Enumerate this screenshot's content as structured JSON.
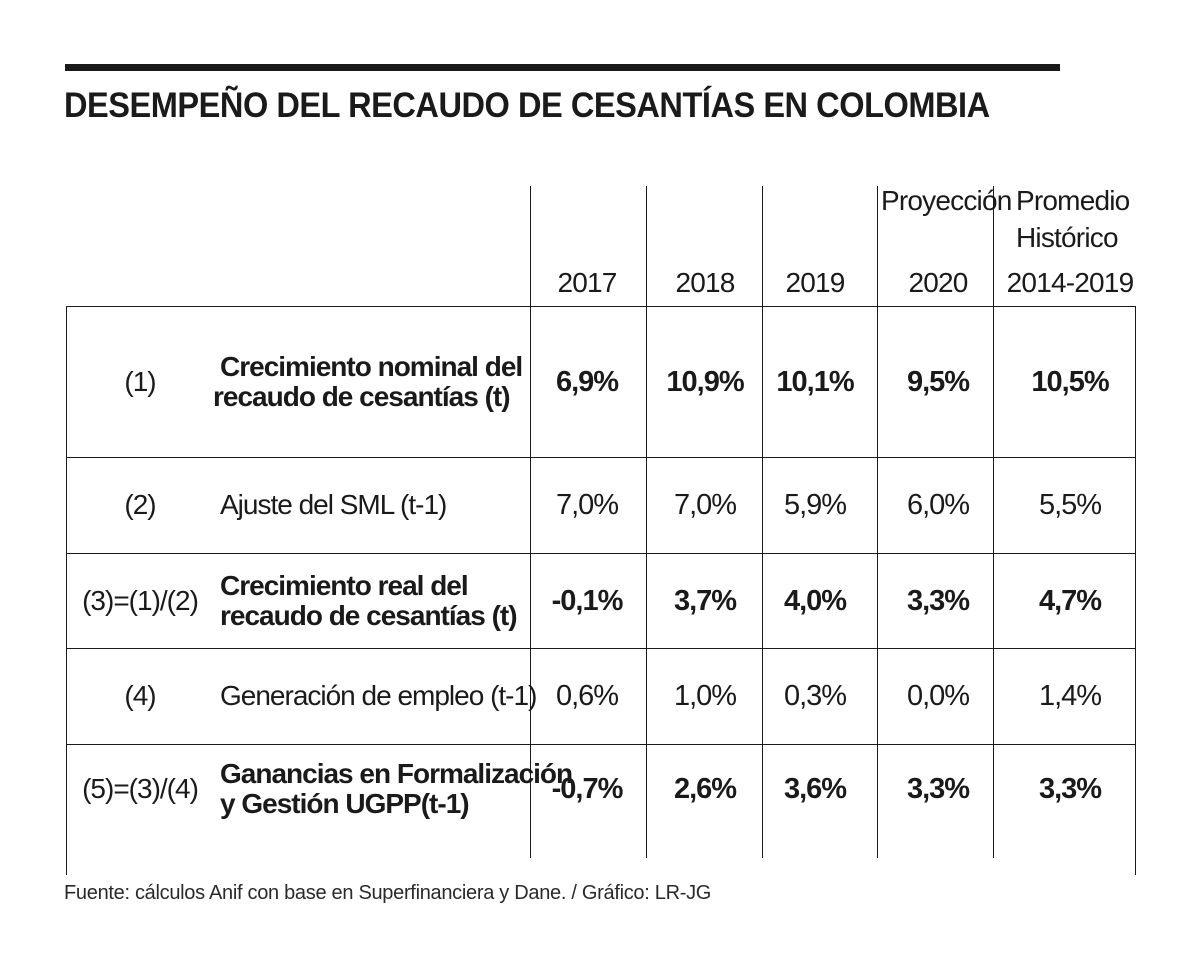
{
  "title": "DESEMPEÑO DEL RECAUDO DE CESANTÍAS EN COLOMBIA",
  "header": {
    "proyeccion": "Proyección",
    "promedio_line1": "Promedio",
    "promedio_line2": "Histórico",
    "columns": [
      "2017",
      "2018",
      "2019",
      "2020",
      "2014-2019"
    ]
  },
  "rows": [
    {
      "num": "(1)",
      "label_line1": "Crecimiento nominal del",
      "label_line2": "recaudo de cesantías (t)",
      "bold": true,
      "values": [
        "6,9%",
        "10,9%",
        "10,1%",
        "9,5%",
        "10,5%"
      ]
    },
    {
      "num": "(2)",
      "label_line1": "Ajuste del SML (t-1)",
      "label_line2": "",
      "bold": false,
      "values": [
        "7,0%",
        "7,0%",
        "5,9%",
        "6,0%",
        "5,5%"
      ]
    },
    {
      "num": "(3)=(1)/(2)",
      "label_line1": "Crecimiento real del",
      "label_line2": "recaudo de cesantías (t)",
      "bold": true,
      "values": [
        "-0,1%",
        "3,7%",
        "4,0%",
        "3,3%",
        "4,7%"
      ]
    },
    {
      "num": "(4)",
      "label_line1": "Generación de empleo (t-1)",
      "label_line2": "",
      "bold": false,
      "values": [
        "0,6%",
        "1,0%",
        "0,3%",
        "0,0%",
        "1,4%"
      ]
    },
    {
      "num": "(5)=(3)/(4)",
      "label_line1": "Ganancias en Formalización",
      "label_line2": "y Gestión UGPP(t-1)",
      "bold": true,
      "values": [
        "-0,7%",
        "2,6%",
        "3,6%",
        "3,3%",
        "3,3%"
      ]
    }
  ],
  "source": "Fuente: cálculos Anif con base en Superfinanciera y Dane. / Gráfico: LR-JG",
  "chart_data": {
    "type": "table",
    "title": "DESEMPEÑO DEL RECAUDO DE CESANTÍAS EN COLOMBIA",
    "columns": [
      "2017",
      "2018",
      "2019",
      "2020",
      "2014-2019"
    ],
    "rows": [
      {
        "label": "Crecimiento nominal del recaudo de cesantías (t)",
        "values": [
          6.9,
          10.9,
          10.1,
          9.5,
          10.5
        ]
      },
      {
        "label": "Ajuste del SML (t-1)",
        "values": [
          7.0,
          7.0,
          5.9,
          6.0,
          5.5
        ]
      },
      {
        "label": "Crecimiento real del recaudo de cesantías (t)",
        "values": [
          -0.1,
          3.7,
          4.0,
          3.3,
          4.7
        ]
      },
      {
        "label": "Generación de empleo (t-1)",
        "values": [
          0.6,
          1.0,
          0.3,
          0.0,
          1.4
        ]
      },
      {
        "label": "Ganancias en Formalización y Gestión UGPP(t-1)",
        "values": [
          -0.7,
          2.6,
          3.6,
          3.3,
          3.3
        ]
      }
    ]
  }
}
